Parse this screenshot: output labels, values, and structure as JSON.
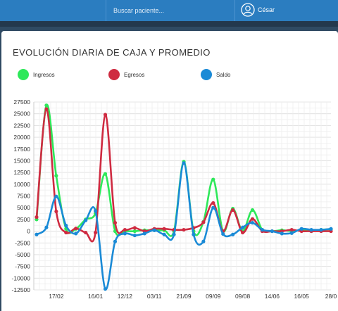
{
  "topbar": {
    "search_placeholder": "Buscar paciente...",
    "user_name": "César",
    "user_icon": "user-circle-icon"
  },
  "card": {
    "title": "EVOLUCIÓN DIARIA DE CAJA Y PROMEDIO"
  },
  "legend": [
    {
      "label": "Ingresos",
      "color": "#2ee85a"
    },
    {
      "label": "Egresos",
      "color": "#cf2b41"
    },
    {
      "label": "Saldo",
      "color": "#1a8ad6"
    }
  ],
  "chart_data": {
    "type": "line",
    "title": "EVOLUCIÓN DIARIA DE CAJA Y PROMEDIO",
    "xlabel": "",
    "ylabel": "",
    "ylim": [
      -12500,
      27500
    ],
    "yticks": [
      27500,
      25000,
      22500,
      20000,
      17500,
      15000,
      12500,
      10000,
      7500,
      5000,
      2500,
      0,
      -2500,
      -5000,
      -7500,
      -10000,
      -12500
    ],
    "ytick_labels": [
      "27500",
      "25000",
      "22500",
      "20000",
      "17500",
      "15000",
      "12500",
      "10000",
      "7500",
      "5000",
      "2500",
      "0",
      "-2500",
      "-5000",
      "-7500",
      "-10000",
      "-12500"
    ],
    "x_tick_labels": [
      {
        "label": "17/02",
        "i": 2
      },
      {
        "label": "16/01",
        "i": 6
      },
      {
        "label": "12/12",
        "i": 9
      },
      {
        "label": "03/11",
        "i": 12
      },
      {
        "label": "21/09",
        "i": 15
      },
      {
        "label": "09/09",
        "i": 18
      },
      {
        "label": "09/08",
        "i": 21
      },
      {
        "label": "14/06",
        "i": 24
      },
      {
        "label": "16/05",
        "i": 27
      },
      {
        "label": "28/0",
        "i": 30
      }
    ],
    "grid": true,
    "legend_position": "top",
    "series": [
      {
        "name": "Ingresos",
        "color": "#2ee85a",
        "values": [
          2500,
          26800,
          11800,
          500,
          500,
          2500,
          3800,
          12200,
          0,
          0,
          0,
          200,
          200,
          200,
          0,
          14800,
          0,
          2000,
          11000,
          0,
          4800,
          0,
          4500,
          300,
          0,
          200,
          0,
          200,
          0,
          300,
          400
        ]
      },
      {
        "name": "Egresos",
        "color": "#cf2b41",
        "values": [
          3000,
          26000,
          4200,
          -300,
          600,
          -300,
          -300,
          24800,
          1800,
          300,
          700,
          0,
          500,
          500,
          300,
          300,
          700,
          1900,
          6000,
          0,
          4500,
          -300,
          2600,
          0,
          0,
          0,
          300,
          0,
          0,
          0,
          0
        ]
      },
      {
        "name": "Saldo",
        "color": "#1a8ad6",
        "values": [
          -700,
          800,
          7400,
          1200,
          -500,
          2300,
          4300,
          -12300,
          -2200,
          -500,
          -900,
          -500,
          200,
          -700,
          -700,
          14500,
          -700,
          -2200,
          5000,
          -600,
          -700,
          800,
          1800,
          300,
          0,
          -500,
          -400,
          500,
          300,
          300,
          500
        ]
      }
    ]
  }
}
